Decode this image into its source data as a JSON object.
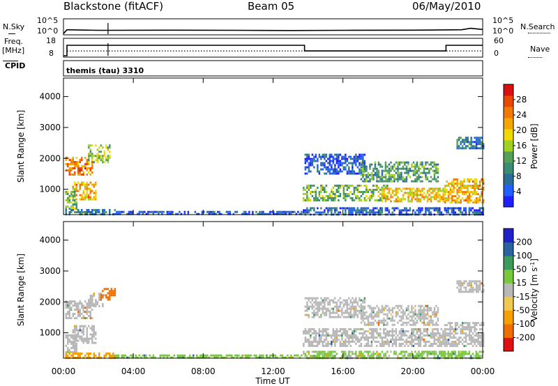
{
  "header": {
    "station": "Blackstone (fitACF)",
    "beam": "Beam 05",
    "date": "06/May/2010"
  },
  "top_labels": {
    "nsky": "N.Sky",
    "nsky_ticks": [
      "10^5",
      "10^0"
    ],
    "nsearch": "N.Search",
    "nsearch_ticks": [
      "10^5",
      "10^0"
    ],
    "freq_label": "Freq.",
    "freq_unit": "[MHz]",
    "freq_ticks": [
      "18",
      "8"
    ],
    "nave": "Nave",
    "nave_ticks": [
      "60",
      "0"
    ],
    "cpid": "CPID",
    "program": "themis (tau) 3310"
  },
  "chart_data": [
    {
      "type": "line",
      "name": "noise",
      "series": [
        {
          "name": "N.Sky",
          "x_hours": [
            0,
            0.2,
            2,
            2.55,
            6,
            10,
            13,
            16,
            20,
            22.8,
            23.3,
            24
          ],
          "log10_values": [
            0.2,
            1.5,
            1.3,
            1.3,
            1.35,
            1.3,
            1.25,
            1.3,
            1.35,
            1.5,
            2.0,
            1.6
          ]
        }
      ],
      "ylabel_left": "N.Sky",
      "ylabel_right": "N.Search"
    },
    {
      "type": "line",
      "name": "frequency-nave",
      "series": [
        {
          "name": "Freq.",
          "x_hours": [
            0,
            0.2,
            0.2,
            13.8,
            13.8,
            21.9,
            21.9,
            24
          ],
          "values": [
            8,
            8,
            14.5,
            14.5,
            11,
            11,
            14.5,
            14.5
          ]
        },
        {
          "name": "Nave",
          "x_hours": [
            0.2,
            24
          ],
          "values": [
            18,
            18
          ]
        }
      ],
      "freq_range": [
        8,
        18
      ],
      "nave_range": [
        0,
        60
      ]
    },
    {
      "type": "heatmap",
      "name": "power",
      "ylabel": "Slant Range [km]",
      "yticks": [
        "1000",
        "2000",
        "3000",
        "4000"
      ],
      "ylim": [
        180,
        4600
      ],
      "colorbar_label": "Power [dB]",
      "colorbar_ticks": [
        "4",
        "8",
        "12",
        "16",
        "20",
        "24",
        "28"
      ],
      "colorbar_colors": [
        "#1f1fff",
        "#2060ff",
        "#2a6e98",
        "#3a8c72",
        "#56a055",
        "#9fd024",
        "#f0d800",
        "#f5a600",
        "#f27a00",
        "#ea4800",
        "#d81010"
      ],
      "regions": [
        {
          "t0": 0.1,
          "t1": 1.6,
          "r0": 1500,
          "r1": 2050,
          "p": 24
        },
        {
          "t0": 1.4,
          "t1": 2.6,
          "r0": 1850,
          "r1": 2450,
          "p": 16
        },
        {
          "t0": 0.5,
          "t1": 1.8,
          "r0": 700,
          "r1": 1250,
          "p": 21
        },
        {
          "t0": 0.1,
          "t1": 0.7,
          "r0": 400,
          "r1": 950,
          "p": 14
        },
        {
          "t0": 0.1,
          "t1": 2.9,
          "r0": 180,
          "r1": 360,
          "p": 9
        },
        {
          "t0": 2.9,
          "t1": 13.6,
          "r0": 180,
          "r1": 300,
          "p": 5
        },
        {
          "t0": 13.7,
          "t1": 18.5,
          "r0": 650,
          "r1": 1150,
          "p": 14
        },
        {
          "t0": 18.2,
          "t1": 21.8,
          "r0": 600,
          "r1": 1050,
          "p": 20
        },
        {
          "t0": 13.8,
          "t1": 17.2,
          "r0": 1500,
          "r1": 2150,
          "p": 5
        },
        {
          "t0": 17.0,
          "t1": 21.4,
          "r0": 1250,
          "r1": 1900,
          "p": 12
        },
        {
          "t0": 21.8,
          "t1": 24,
          "r0": 550,
          "r1": 1350,
          "p": 21
        },
        {
          "t0": 22.5,
          "t1": 24,
          "r0": 2300,
          "r1": 2700,
          "p": 8
        },
        {
          "t0": 13.7,
          "t1": 24,
          "r0": 180,
          "r1": 420,
          "p": 6
        }
      ]
    },
    {
      "type": "heatmap",
      "name": "velocity",
      "ylabel": "Slant Range [km]",
      "yticks": [
        "1000",
        "2000",
        "3000",
        "4000"
      ],
      "ylim": [
        180,
        4600
      ],
      "xlabel": "Time UT",
      "xticks": [
        "00:00",
        "04:00",
        "08:00",
        "12:00",
        "16:00",
        "20:00",
        "00:00"
      ],
      "xlim_hours": [
        0,
        24
      ],
      "colorbar_label": "Velocity [m s^-1]",
      "colorbar_ticks": [
        "200",
        "100",
        "50",
        "15",
        "-15",
        "-50",
        "-100",
        "-200"
      ],
      "colorbar_colors": [
        "#2020c8",
        "#2a64a0",
        "#3c9a5a",
        "#78c83c",
        "#b8b8b8",
        "#f0c850",
        "#f5a000",
        "#f06e00",
        "#e01010"
      ],
      "regions": [
        {
          "t0": 0.1,
          "t1": 1.6,
          "r0": 1500,
          "r1": 2050,
          "v": 0
        },
        {
          "t0": 1.4,
          "t1": 2.2,
          "r0": 1850,
          "r1": 2300,
          "v": 0
        },
        {
          "t0": 2.1,
          "t1": 2.9,
          "r0": 2050,
          "r1": 2450,
          "v": -110
        },
        {
          "t0": 0.5,
          "t1": 1.8,
          "r0": 700,
          "r1": 1250,
          "v": 0
        },
        {
          "t0": 0.1,
          "t1": 0.7,
          "r0": 400,
          "r1": 950,
          "v": 0
        },
        {
          "t0": 0.1,
          "t1": 2.9,
          "r0": 180,
          "r1": 360,
          "v": -80
        },
        {
          "t0": 2.9,
          "t1": 13.6,
          "r0": 180,
          "r1": 300,
          "v": 40
        },
        {
          "t0": 13.7,
          "t1": 21.8,
          "r0": 600,
          "r1": 1150,
          "v": 0
        },
        {
          "t0": 13.8,
          "t1": 17.2,
          "r0": 1500,
          "r1": 2150,
          "v": 0
        },
        {
          "t0": 17.0,
          "t1": 21.4,
          "r0": 1250,
          "r1": 1900,
          "v": 0
        },
        {
          "t0": 21.8,
          "t1": 24,
          "r0": 550,
          "r1": 1350,
          "v": 0
        },
        {
          "t0": 22.5,
          "t1": 24,
          "r0": 2300,
          "r1": 2700,
          "v": 0
        },
        {
          "t0": 13.7,
          "t1": 24,
          "r0": 180,
          "r1": 420,
          "v": 20
        }
      ]
    }
  ]
}
